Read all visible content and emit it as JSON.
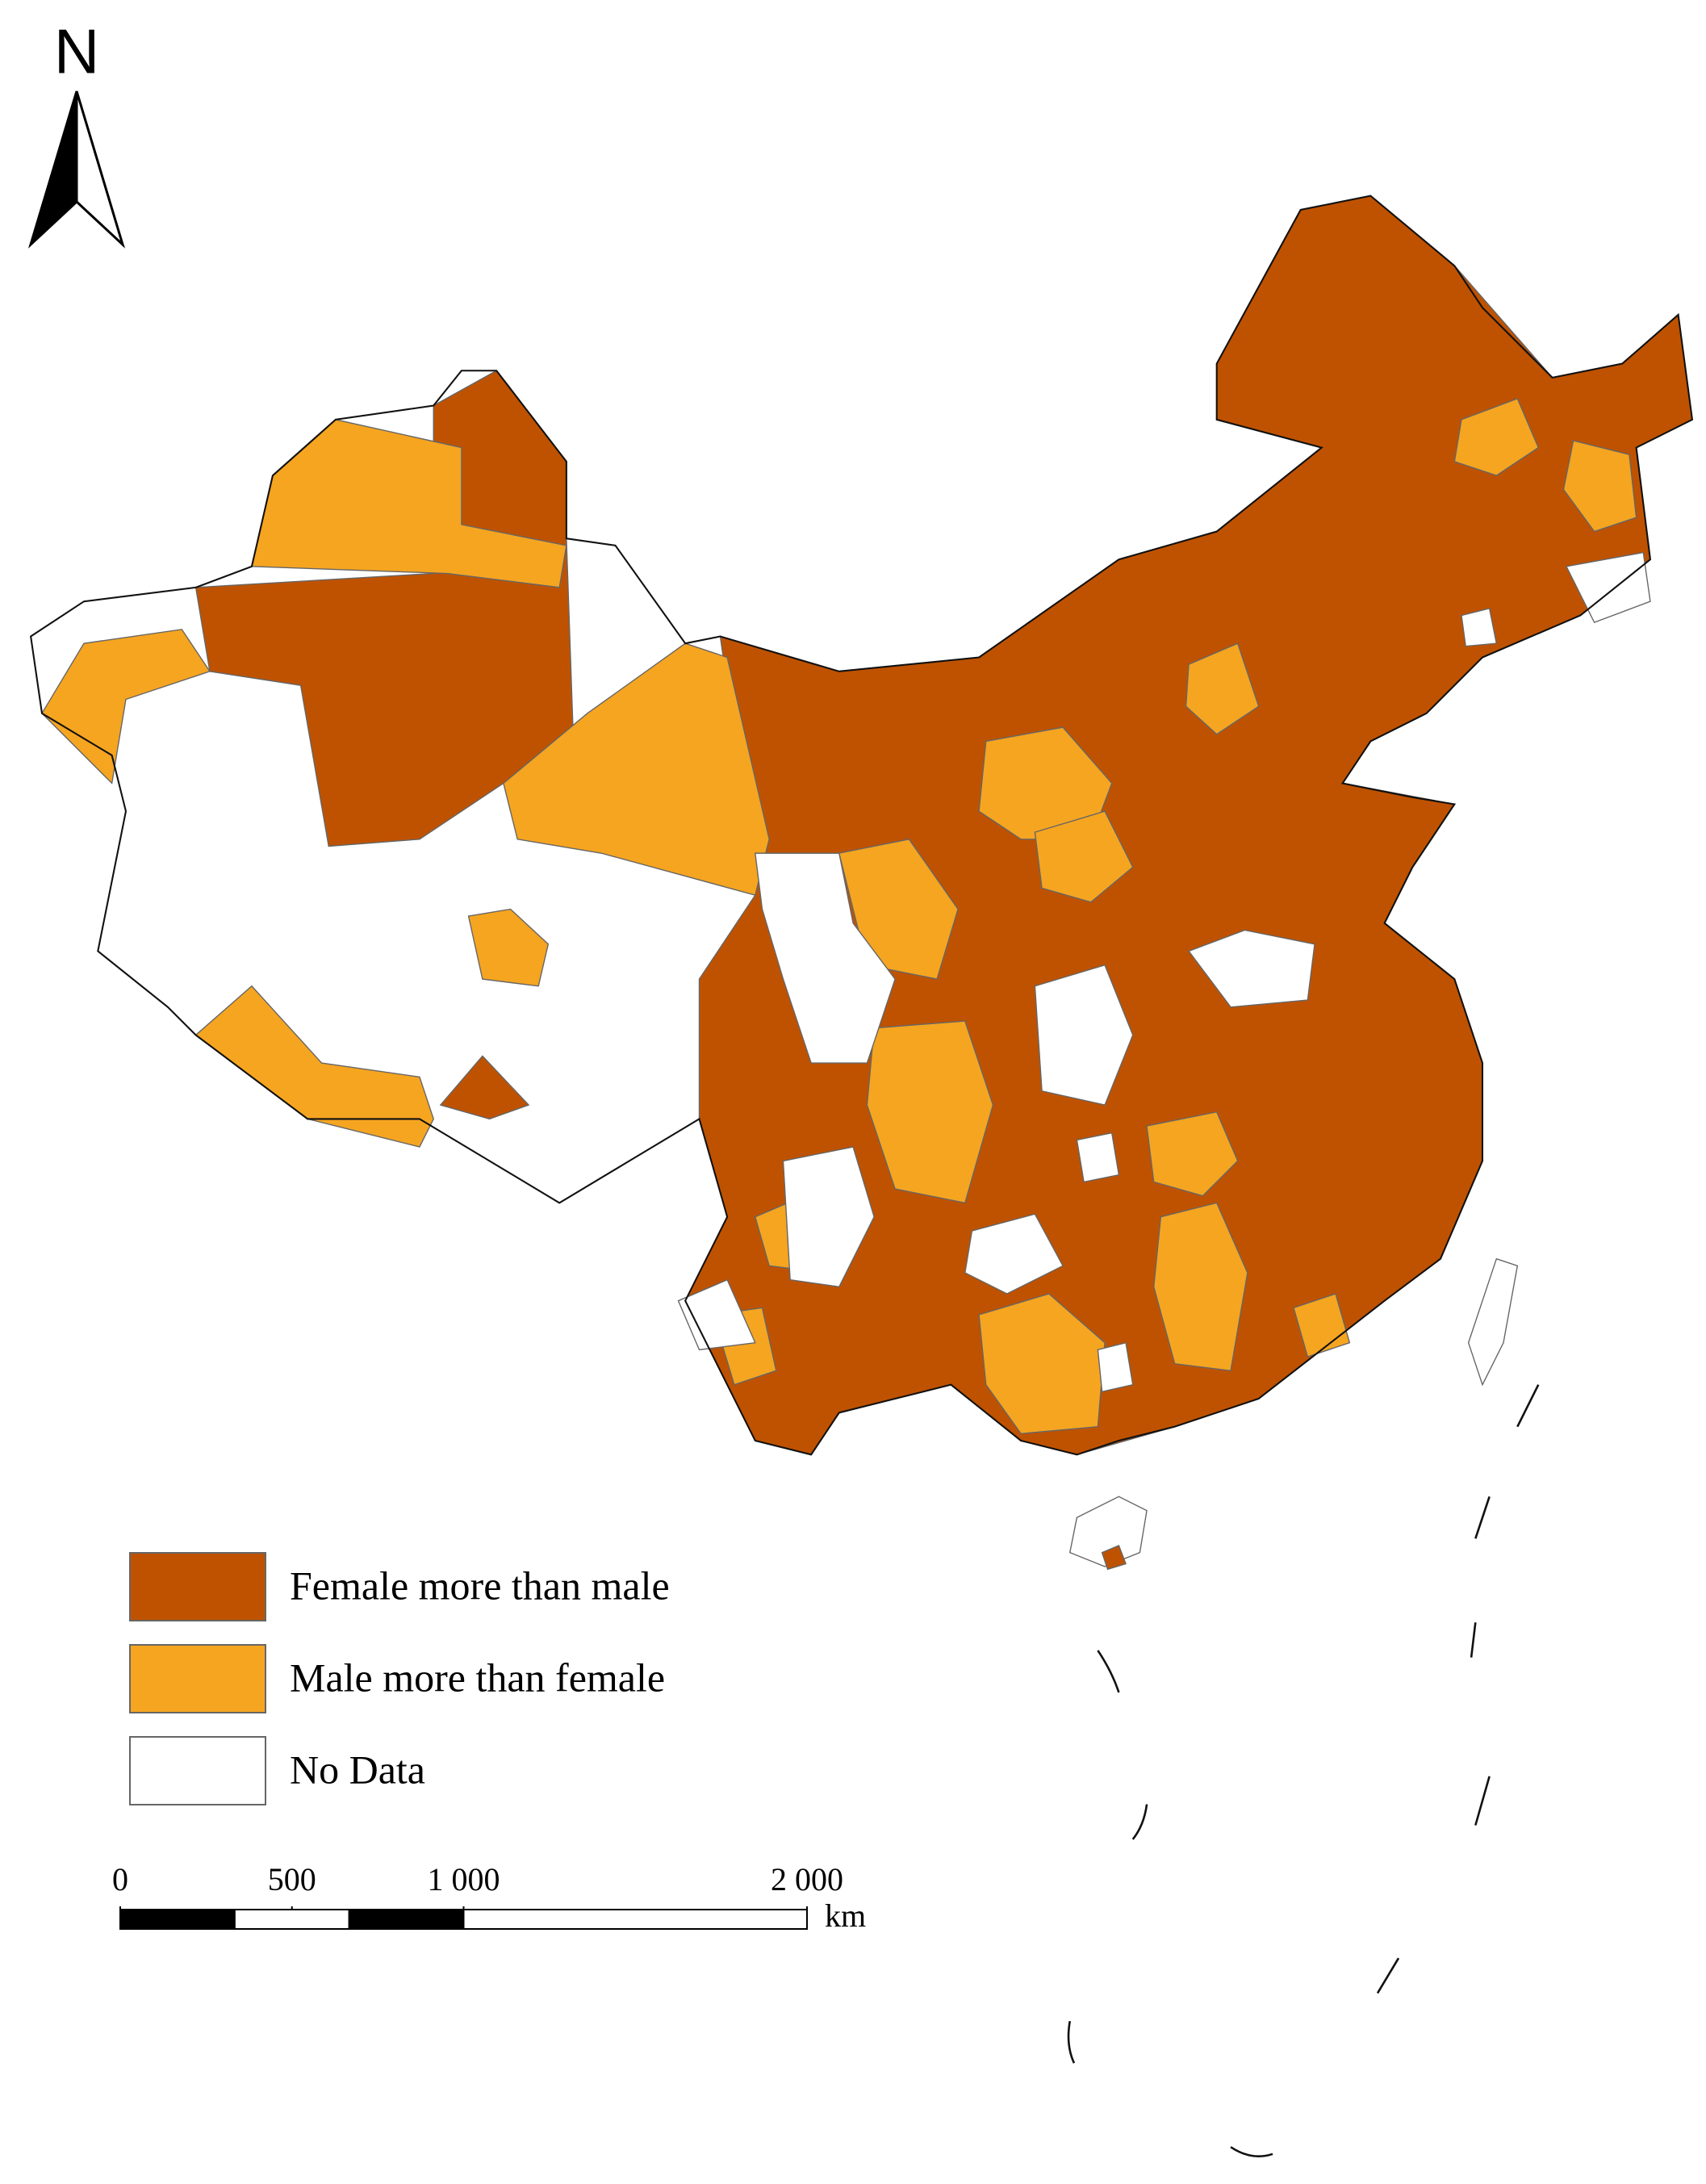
{
  "north_label": "N",
  "legend": [
    {
      "label": "Female more than male",
      "color": "#bf5200"
    },
    {
      "label": "Male more than female",
      "color": "#f6a520"
    },
    {
      "label": "No Data",
      "color": "#ffffff"
    }
  ],
  "scale_bar": {
    "ticks": [
      0,
      500,
      {
        "value": 1000,
        "label": "1 000"
      },
      {
        "value": 2000,
        "label": "2 000"
      }
    ],
    "unit": "km"
  }
}
